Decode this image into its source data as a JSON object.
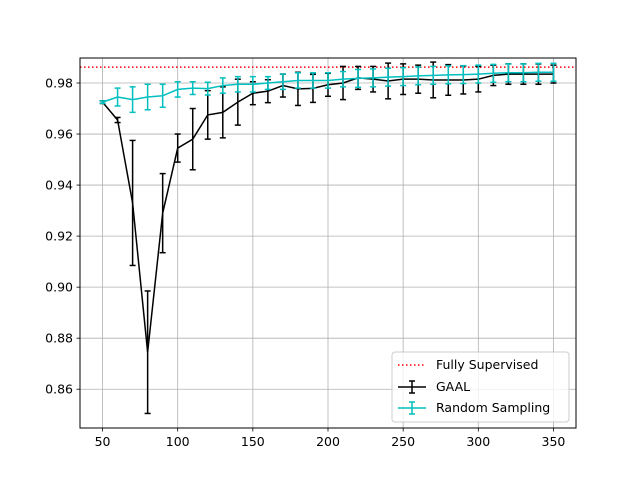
{
  "chart_data": {
    "type": "line",
    "title": "",
    "xlabel": "",
    "ylabel": "",
    "xlim": [
      35,
      365
    ],
    "ylim": [
      0.8448,
      0.9898
    ],
    "xticks": [
      50,
      100,
      150,
      200,
      250,
      300,
      350
    ],
    "xtick_labels": [
      "50",
      "100",
      "150",
      "200",
      "250",
      "300",
      "350"
    ],
    "yticks": [
      0.86,
      0.88,
      0.9,
      0.92,
      0.94,
      0.96,
      0.98
    ],
    "ytick_labels": [
      "0.86",
      "0.88",
      "0.90",
      "0.92",
      "0.94",
      "0.96",
      "0.98"
    ],
    "grid": true,
    "legend_position": "lower-right",
    "reference_line": {
      "name": "Fully Supervised",
      "y": 0.9862,
      "color": "#ff0000",
      "style": "dotted"
    },
    "series": [
      {
        "name": "GAAL",
        "color": "#000000",
        "x": [
          50,
          60,
          70,
          80,
          90,
          100,
          110,
          120,
          130,
          140,
          150,
          160,
          170,
          180,
          190,
          200,
          210,
          220,
          230,
          240,
          250,
          260,
          270,
          280,
          290,
          300,
          310,
          320,
          330,
          340,
          350
        ],
        "y": [
          0.9725,
          0.9655,
          0.933,
          0.8745,
          0.929,
          0.9545,
          0.958,
          0.9675,
          0.9685,
          0.9725,
          0.976,
          0.9768,
          0.979,
          0.9777,
          0.9779,
          0.9793,
          0.98,
          0.982,
          0.9815,
          0.9808,
          0.9815,
          0.9815,
          0.9812,
          0.9812,
          0.9812,
          0.9815,
          0.983,
          0.9835,
          0.9835,
          0.9835,
          0.9835
        ],
        "err": [
          0.0005,
          0.001,
          0.0245,
          0.024,
          0.0155,
          0.0055,
          0.012,
          0.0095,
          0.01,
          0.009,
          0.0045,
          0.0045,
          0.0045,
          0.0065,
          0.0055,
          0.0045,
          0.0065,
          0.0045,
          0.005,
          0.007,
          0.006,
          0.0055,
          0.007,
          0.006,
          0.0055,
          0.005,
          0.004,
          0.004,
          0.004,
          0.004,
          0.0035
        ]
      },
      {
        "name": "Random Sampling",
        "color": "#00bfbf",
        "x": [
          50,
          60,
          70,
          80,
          90,
          100,
          110,
          120,
          130,
          140,
          150,
          160,
          170,
          180,
          190,
          200,
          210,
          220,
          230,
          240,
          250,
          260,
          270,
          280,
          290,
          300,
          310,
          320,
          330,
          340,
          350
        ],
        "y": [
          0.9725,
          0.9745,
          0.9735,
          0.9745,
          0.975,
          0.9775,
          0.978,
          0.9778,
          0.979,
          0.9795,
          0.9795,
          0.98,
          0.9805,
          0.981,
          0.981,
          0.981,
          0.9815,
          0.9818,
          0.982,
          0.9823,
          0.9825,
          0.9828,
          0.983,
          0.9832,
          0.9833,
          0.9835,
          0.9838,
          0.984,
          0.984,
          0.9842,
          0.9842
        ],
        "err": [
          0.0005,
          0.0035,
          0.005,
          0.005,
          0.0045,
          0.003,
          0.0025,
          0.0025,
          0.003,
          0.003,
          0.003,
          0.0025,
          0.003,
          0.003,
          0.003,
          0.003,
          0.003,
          0.0035,
          0.0035,
          0.0035,
          0.0035,
          0.0035,
          0.0035,
          0.0035,
          0.0035,
          0.0035,
          0.0035,
          0.0035,
          0.0035,
          0.0035,
          0.0035
        ]
      }
    ]
  }
}
